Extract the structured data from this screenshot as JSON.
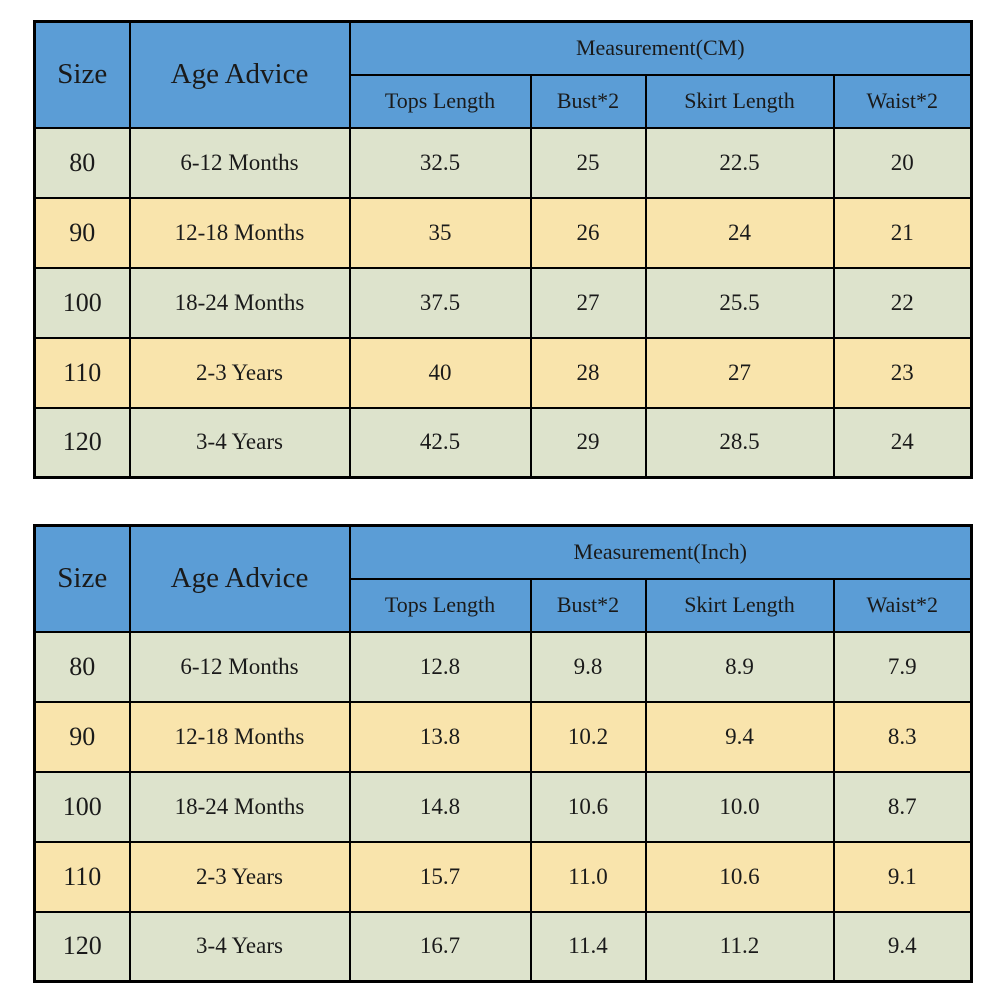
{
  "colors": {
    "header_blue": "#5b9dd6",
    "size_yellow": "#fefe00",
    "row_green": "#dde3cc",
    "row_cream": "#f9e4ac",
    "border_black": "#000000",
    "text": "#1a1a1a",
    "page_background": "#ffffff"
  },
  "tables": [
    {
      "size_header": "Size",
      "age_header": "Age Advice",
      "measurement_label": "Measurement(CM)",
      "sub_headers": [
        "Tops Length",
        "Bust*2",
        "Skirt Length",
        "Waist*2"
      ],
      "rows": [
        {
          "size": "80",
          "age": "6-12 Months",
          "values": [
            "32.5",
            "25",
            "22.5",
            "20"
          ]
        },
        {
          "size": "90",
          "age": "12-18 Months",
          "values": [
            "35",
            "26",
            "24",
            "21"
          ]
        },
        {
          "size": "100",
          "age": "18-24 Months",
          "values": [
            "37.5",
            "27",
            "25.5",
            "22"
          ]
        },
        {
          "size": "110",
          "age": "2-3 Years",
          "values": [
            "40",
            "28",
            "27",
            "23"
          ]
        },
        {
          "size": "120",
          "age": "3-4 Years",
          "values": [
            "42.5",
            "29",
            "28.5",
            "24"
          ]
        }
      ]
    },
    {
      "size_header": "Size",
      "age_header": "Age Advice",
      "measurement_label": "Measurement(Inch)",
      "sub_headers": [
        "Tops Length",
        "Bust*2",
        "Skirt Length",
        "Waist*2"
      ],
      "rows": [
        {
          "size": "80",
          "age": "6-12 Months",
          "values": [
            "12.8",
            "9.8",
            "8.9",
            "7.9"
          ]
        },
        {
          "size": "90",
          "age": "12-18 Months",
          "values": [
            "13.8",
            "10.2",
            "9.4",
            "8.3"
          ]
        },
        {
          "size": "100",
          "age": "18-24 Months",
          "values": [
            "14.8",
            "10.6",
            "10.0",
            "8.7"
          ]
        },
        {
          "size": "110",
          "age": "2-3 Years",
          "values": [
            "15.7",
            "11.0",
            "10.6",
            "9.1"
          ]
        },
        {
          "size": "120",
          "age": "3-4 Years",
          "values": [
            "16.7",
            "11.4",
            "11.2",
            "9.4"
          ]
        }
      ]
    }
  ],
  "chart_data": [
    {
      "type": "table",
      "title": "Measurement(CM)",
      "columns": [
        "Size",
        "Age Advice",
        "Tops Length",
        "Bust*2",
        "Skirt Length",
        "Waist*2"
      ],
      "rows": [
        [
          "80",
          "6-12 Months",
          32.5,
          25,
          22.5,
          20
        ],
        [
          "90",
          "12-18 Months",
          35,
          26,
          24,
          21
        ],
        [
          "100",
          "18-24 Months",
          37.5,
          27,
          25.5,
          22
        ],
        [
          "110",
          "2-3 Years",
          40,
          28,
          27,
          23
        ],
        [
          "120",
          "3-4 Years",
          42.5,
          29,
          28.5,
          24
        ]
      ]
    },
    {
      "type": "table",
      "title": "Measurement(Inch)",
      "columns": [
        "Size",
        "Age Advice",
        "Tops Length",
        "Bust*2",
        "Skirt Length",
        "Waist*2"
      ],
      "rows": [
        [
          "80",
          "6-12 Months",
          12.8,
          9.8,
          8.9,
          7.9
        ],
        [
          "90",
          "12-18 Months",
          13.8,
          10.2,
          9.4,
          8.3
        ],
        [
          "100",
          "18-24 Months",
          14.8,
          10.6,
          10.0,
          8.7
        ],
        [
          "110",
          "2-3 Years",
          15.7,
          11.0,
          10.6,
          9.1
        ],
        [
          "120",
          "3-4 Years",
          16.7,
          11.4,
          11.2,
          9.4
        ]
      ]
    }
  ]
}
